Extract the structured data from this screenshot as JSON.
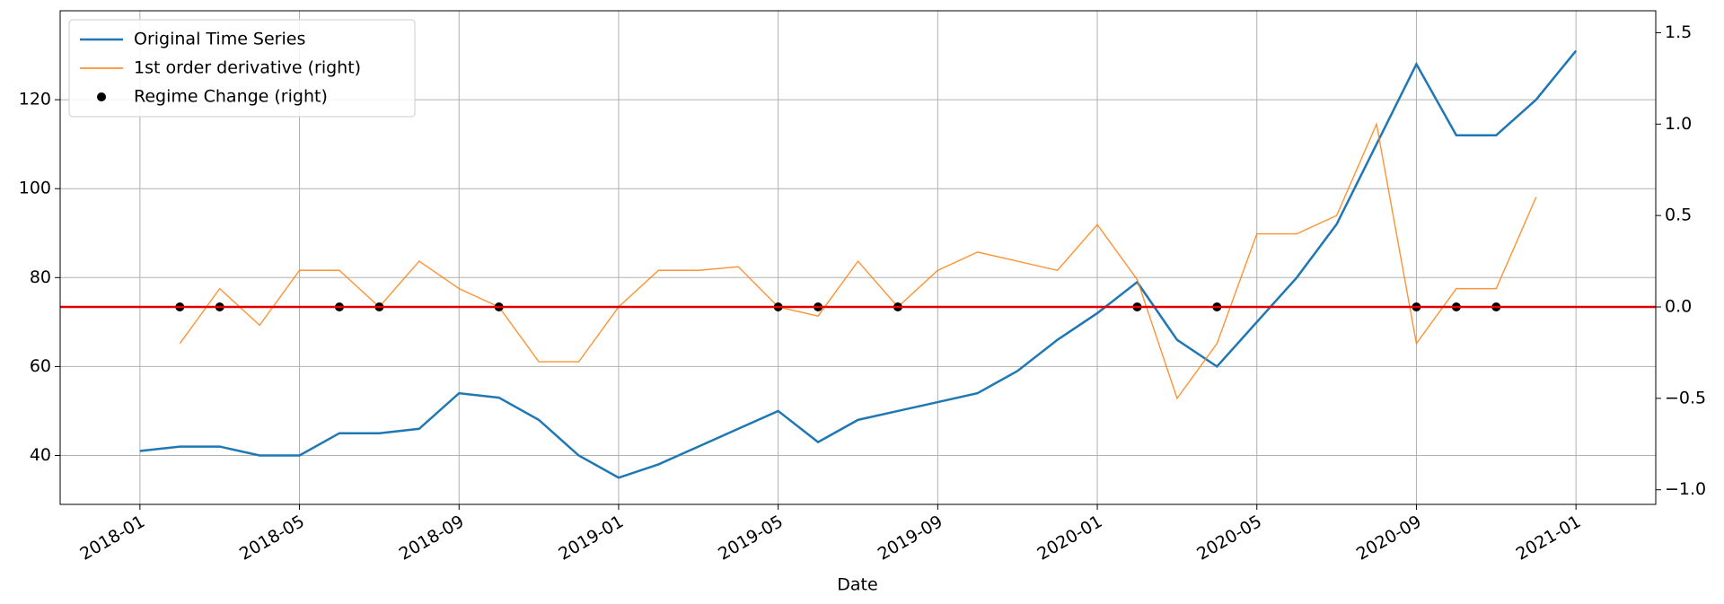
{
  "chart_data": {
    "type": "line",
    "xlabel": "Date",
    "x": [
      "2018-01",
      "2018-02",
      "2018-03",
      "2018-04",
      "2018-05",
      "2018-06",
      "2018-07",
      "2018-08",
      "2018-09",
      "2018-10",
      "2018-11",
      "2018-12",
      "2019-01",
      "2019-02",
      "2019-03",
      "2019-04",
      "2019-05",
      "2019-06",
      "2019-07",
      "2019-08",
      "2019-09",
      "2019-10",
      "2019-11",
      "2019-12",
      "2020-01",
      "2020-02",
      "2020-03",
      "2020-04",
      "2020-05",
      "2020-06",
      "2020-07",
      "2020-08",
      "2020-09",
      "2020-10",
      "2020-11",
      "2020-12",
      "2021-01"
    ],
    "series": [
      {
        "name": "Original Time Series",
        "color": "#1f77b4",
        "axis": "y",
        "values": [
          41,
          42,
          42,
          40,
          40,
          45,
          45,
          46,
          54,
          53,
          48,
          40,
          35,
          38,
          42,
          46,
          50,
          43,
          48,
          50,
          52,
          54,
          59,
          66,
          72,
          79,
          66,
          60,
          70,
          80,
          92,
          110,
          128,
          112,
          112,
          120,
          131
        ]
      },
      {
        "name": "1st order derivative (right)",
        "color": "#ff7f0e",
        "axis": "y2",
        "values": [
          null,
          -0.2,
          0.1,
          -0.1,
          0.2,
          0.2,
          0.0,
          0.25,
          0.1,
          0.0,
          -0.3,
          -0.3,
          0.0,
          0.2,
          0.2,
          0.22,
          0.0,
          -0.05,
          0.25,
          0.0,
          0.2,
          0.3,
          0.25,
          0.2,
          0.45,
          0.15,
          -0.5,
          -0.2,
          0.4,
          0.4,
          0.5,
          1.0,
          -0.2,
          0.1,
          0.1,
          0.6,
          null
        ]
      },
      {
        "name": "Regime Change (right)",
        "color": "#000000",
        "axis": "y2",
        "type": "scatter",
        "x": [
          "2018-02",
          "2018-03",
          "2018-06",
          "2018-07",
          "2018-10",
          "2019-05",
          "2019-06",
          "2019-08",
          "2020-02",
          "2020-04",
          "2020-09",
          "2020-10",
          "2020-11"
        ],
        "values": [
          0,
          0,
          0,
          0,
          0,
          0,
          0,
          0,
          0,
          0,
          0,
          0,
          0
        ]
      }
    ],
    "xlim": [
      "2017-11",
      "2021-03"
    ],
    "xticks": [
      "2018-01",
      "2018-05",
      "2018-09",
      "2019-01",
      "2019-05",
      "2019-09",
      "2020-01",
      "2020-05",
      "2020-09",
      "2021-01"
    ],
    "ylim": [
      29,
      140
    ],
    "yticks": [
      40,
      60,
      80,
      100,
      120
    ],
    "y2lim": [
      -1.08,
      1.62
    ],
    "y2ticks": [
      {
        "value": -1,
        "label": "−1.0"
      },
      {
        "value": -0.5,
        "label": "−0.5"
      },
      {
        "value": 0,
        "label": "0.0"
      },
      {
        "value": 0.5,
        "label": "0.5"
      },
      {
        "value": 1,
        "label": "1.0"
      },
      {
        "value": 1.5,
        "label": "1.5"
      }
    ],
    "hline_y2": 0,
    "hline_color": "#e00000",
    "grid": true,
    "legend": "upper left"
  }
}
